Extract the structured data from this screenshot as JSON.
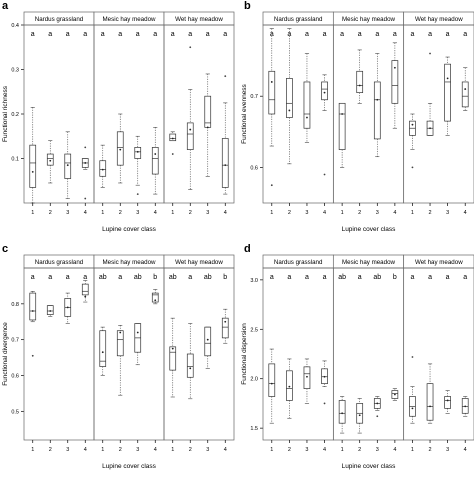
{
  "figure": {
    "categories": [
      "1",
      "2",
      "3",
      "4"
    ],
    "xlabel": "Lupine cover class",
    "strips": [
      "Nardus grassland",
      "Mesic hay meadow",
      "Wet hay meadow"
    ]
  },
  "chart_data": [
    {
      "panel_letter": "a",
      "type": "boxplot",
      "ylabel": "Functional richness",
      "ylim": [
        0.0,
        0.4
      ],
      "yticks": [
        "0.1",
        "0.2",
        "0.3",
        "0.4"
      ],
      "facets": [
        {
          "name": "Nardus grassland",
          "letters": [
            "a",
            "a",
            "a",
            "a"
          ],
          "boxes": [
            {
              "min": 0.0,
              "q1": 0.035,
              "median": 0.09,
              "q3": 0.13,
              "max": 0.215,
              "mean": 0.07,
              "outliers": []
            },
            {
              "min": 0.045,
              "q1": 0.085,
              "median": 0.1,
              "q3": 0.11,
              "max": 0.14,
              "mean": 0.095,
              "outliers": []
            },
            {
              "min": 0.01,
              "q1": 0.055,
              "median": 0.09,
              "q3": 0.11,
              "max": 0.16,
              "mean": 0.085,
              "outliers": []
            },
            {
              "min": 0.075,
              "q1": 0.08,
              "median": 0.09,
              "q3": 0.1,
              "max": 0.1,
              "mean": 0.09,
              "outliers": [
                0.125,
                0.01
              ]
            }
          ]
        },
        {
          "name": "Mesic hay meadow",
          "letters": [
            "a",
            "a",
            "a",
            "a"
          ],
          "boxes": [
            {
              "min": 0.035,
              "q1": 0.06,
              "median": 0.075,
              "q3": 0.095,
              "max": 0.13,
              "mean": 0.075,
              "outliers": []
            },
            {
              "min": 0.045,
              "q1": 0.085,
              "median": 0.125,
              "q3": 0.16,
              "max": 0.2,
              "mean": 0.12,
              "outliers": []
            },
            {
              "min": 0.04,
              "q1": 0.1,
              "median": 0.115,
              "q3": 0.125,
              "max": 0.15,
              "mean": 0.115,
              "outliers": [
                0.02
              ]
            },
            {
              "min": 0.02,
              "q1": 0.065,
              "median": 0.1,
              "q3": 0.125,
              "max": 0.17,
              "mean": 0.11,
              "outliers": []
            }
          ]
        },
        {
          "name": "Wet hay meadow",
          "letters": [
            "a",
            "a",
            "a",
            "a"
          ],
          "boxes": [
            {
              "min": 0.14,
              "q1": 0.14,
              "median": 0.145,
              "q3": 0.155,
              "max": 0.16,
              "mean": 0.145,
              "outliers": [
                0.11
              ]
            },
            {
              "min": 0.03,
              "q1": 0.12,
              "median": 0.155,
              "q3": 0.18,
              "max": 0.255,
              "mean": 0.165,
              "outliers": [
                0.35
              ]
            },
            {
              "min": 0.06,
              "q1": 0.17,
              "median": 0.18,
              "q3": 0.24,
              "max": 0.29,
              "mean": 0.17,
              "outliers": []
            },
            {
              "min": 0.02,
              "q1": 0.035,
              "median": 0.085,
              "q3": 0.145,
              "max": 0.225,
              "mean": 0.085,
              "outliers": [
                0.285
              ]
            }
          ]
        }
      ]
    },
    {
      "panel_letter": "b",
      "type": "boxplot",
      "ylabel": "Functional evenness",
      "ylim": [
        0.55,
        0.8
      ],
      "yticks": [
        "0.6",
        "0.7"
      ],
      "facets": [
        {
          "name": "Nardus grassland",
          "letters": [
            "a",
            "a",
            "a",
            "a"
          ],
          "boxes": [
            {
              "min": 0.63,
              "q1": 0.675,
              "median": 0.695,
              "q3": 0.735,
              "max": 0.795,
              "mean": 0.72,
              "outliers": [
                0.575
              ]
            },
            {
              "min": 0.605,
              "q1": 0.67,
              "median": 0.69,
              "q3": 0.725,
              "max": 0.795,
              "mean": 0.68,
              "outliers": []
            },
            {
              "min": 0.635,
              "q1": 0.655,
              "median": 0.675,
              "q3": 0.72,
              "max": 0.76,
              "mean": 0.67,
              "outliers": []
            },
            {
              "min": 0.68,
              "q1": 0.695,
              "median": 0.71,
              "q3": 0.72,
              "max": 0.73,
              "mean": 0.705,
              "outliers": [
                0.59
              ]
            }
          ]
        },
        {
          "name": "Mesic hay meadow",
          "letters": [
            "a",
            "a",
            "a",
            "a"
          ],
          "boxes": [
            {
              "min": 0.6,
              "q1": 0.625,
              "median": 0.675,
              "q3": 0.69,
              "max": 0.69,
              "mean": 0.675,
              "outliers": []
            },
            {
              "min": 0.69,
              "q1": 0.705,
              "median": 0.715,
              "q3": 0.735,
              "max": 0.765,
              "mean": 0.715,
              "outliers": []
            },
            {
              "min": 0.615,
              "q1": 0.64,
              "median": 0.695,
              "q3": 0.72,
              "max": 0.76,
              "mean": 0.695,
              "outliers": []
            },
            {
              "min": 0.655,
              "q1": 0.69,
              "median": 0.715,
              "q3": 0.75,
              "max": 0.775,
              "mean": 0.74,
              "outliers": []
            }
          ]
        },
        {
          "name": "Wet hay meadow",
          "letters": [
            "a",
            "a",
            "a",
            "a"
          ],
          "boxes": [
            {
              "min": 0.625,
              "q1": 0.645,
              "median": 0.655,
              "q3": 0.665,
              "max": 0.675,
              "mean": 0.66,
              "outliers": [
                0.6
              ]
            },
            {
              "min": 0.645,
              "q1": 0.645,
              "median": 0.655,
              "q3": 0.665,
              "max": 0.69,
              "mean": 0.655,
              "outliers": [
                0.76
              ]
            },
            {
              "min": 0.645,
              "q1": 0.665,
              "median": 0.72,
              "q3": 0.745,
              "max": 0.755,
              "mean": 0.725,
              "outliers": []
            },
            {
              "min": 0.68,
              "q1": 0.685,
              "median": 0.7,
              "q3": 0.72,
              "max": 0.74,
              "mean": 0.71,
              "outliers": []
            }
          ]
        }
      ]
    },
    {
      "panel_letter": "c",
      "type": "boxplot",
      "ylabel": "Functional divergence",
      "ylim": [
        0.42,
        0.9
      ],
      "yticks": [
        "0.5",
        "0.6",
        "0.7",
        "0.8"
      ],
      "facets": [
        {
          "name": "Nardus grassland",
          "letters": [
            "a",
            "a",
            "a",
            "a"
          ],
          "boxes": [
            {
              "min": 0.75,
              "q1": 0.755,
              "median": 0.78,
              "q3": 0.83,
              "max": 0.835,
              "mean": 0.78,
              "outliers": [
                0.655
              ]
            },
            {
              "min": 0.765,
              "q1": 0.77,
              "median": 0.78,
              "q3": 0.795,
              "max": 0.795,
              "mean": 0.78,
              "outliers": []
            },
            {
              "min": 0.745,
              "q1": 0.765,
              "median": 0.79,
              "q3": 0.815,
              "max": 0.83,
              "mean": 0.79,
              "outliers": []
            },
            {
              "min": 0.805,
              "q1": 0.825,
              "median": 0.835,
              "q3": 0.855,
              "max": 0.865,
              "mean": 0.82,
              "outliers": []
            }
          ]
        },
        {
          "name": "Mesic hay meadow",
          "letters": [
            "ab",
            "a",
            "ab",
            "b"
          ],
          "boxes": [
            {
              "min": 0.6,
              "q1": 0.625,
              "median": 0.64,
              "q3": 0.725,
              "max": 0.735,
              "mean": 0.665,
              "outliers": []
            },
            {
              "min": 0.545,
              "q1": 0.655,
              "median": 0.7,
              "q3": 0.725,
              "max": 0.74,
              "mean": 0.72,
              "outliers": []
            },
            {
              "min": 0.63,
              "q1": 0.665,
              "median": 0.705,
              "q3": 0.745,
              "max": 0.745,
              "mean": 0.72,
              "outliers": []
            },
            {
              "min": 0.8,
              "q1": 0.805,
              "median": 0.825,
              "q3": 0.83,
              "max": 0.84,
              "mean": 0.81,
              "outliers": []
            }
          ]
        },
        {
          "name": "Wet hay meadow",
          "letters": [
            "ab",
            "a",
            "ab",
            "b"
          ],
          "boxes": [
            {
              "min": 0.54,
              "q1": 0.615,
              "median": 0.665,
              "q3": 0.68,
              "max": 0.76,
              "mean": 0.675,
              "outliers": []
            },
            {
              "min": 0.535,
              "q1": 0.595,
              "median": 0.625,
              "q3": 0.66,
              "max": 0.745,
              "mean": 0.62,
              "outliers": []
            },
            {
              "min": 0.62,
              "q1": 0.655,
              "median": 0.69,
              "q3": 0.735,
              "max": 0.735,
              "mean": 0.7,
              "outliers": []
            },
            {
              "min": 0.69,
              "q1": 0.705,
              "median": 0.735,
              "q3": 0.76,
              "max": 0.785,
              "mean": 0.75,
              "outliers": []
            }
          ]
        }
      ]
    },
    {
      "panel_letter": "d",
      "type": "boxplot",
      "ylabel": "Functional dispersion",
      "ylim": [
        1.38,
        3.12
      ],
      "yticks": [
        "1.5",
        "2.0",
        "2.5",
        "3.0"
      ],
      "facets": [
        {
          "name": "Nardus grassland",
          "letters": [
            "a",
            "a",
            "a",
            "a"
          ],
          "boxes": [
            {
              "min": 1.55,
              "q1": 1.82,
              "median": 1.95,
              "q3": 2.15,
              "max": 2.3,
              "mean": 1.95,
              "outliers": []
            },
            {
              "min": 1.6,
              "q1": 1.78,
              "median": 1.9,
              "q3": 2.08,
              "max": 2.2,
              "mean": 1.92,
              "outliers": []
            },
            {
              "min": 1.75,
              "q1": 1.9,
              "median": 2.05,
              "q3": 2.12,
              "max": 2.2,
              "mean": 2.02,
              "outliers": []
            },
            {
              "min": 1.92,
              "q1": 1.95,
              "median": 2.02,
              "q3": 2.1,
              "max": 2.18,
              "mean": 2.02,
              "outliers": [
                1.75
              ]
            }
          ]
        },
        {
          "name": "Mesic hay meadow",
          "letters": [
            "ab",
            "a",
            "ab",
            "b"
          ],
          "boxes": [
            {
              "min": 1.45,
              "q1": 1.55,
              "median": 1.65,
              "q3": 1.78,
              "max": 1.82,
              "mean": 1.65,
              "outliers": []
            },
            {
              "min": 1.45,
              "q1": 1.55,
              "median": 1.65,
              "q3": 1.75,
              "max": 1.8,
              "mean": 1.63,
              "outliers": []
            },
            {
              "min": 1.68,
              "q1": 1.7,
              "median": 1.75,
              "q3": 1.8,
              "max": 1.82,
              "mean": 1.75,
              "outliers": [
                1.62
              ]
            },
            {
              "min": 1.78,
              "q1": 1.8,
              "median": 1.85,
              "q3": 1.88,
              "max": 1.9,
              "mean": 1.84,
              "outliers": []
            }
          ]
        },
        {
          "name": "Wet hay meadow",
          "letters": [
            "a",
            "a",
            "a",
            "a"
          ],
          "boxes": [
            {
              "min": 1.55,
              "q1": 1.62,
              "median": 1.72,
              "q3": 1.82,
              "max": 1.92,
              "mean": 1.7,
              "outliers": [
                2.22
              ]
            },
            {
              "min": 1.55,
              "q1": 1.58,
              "median": 1.72,
              "q3": 1.95,
              "max": 2.15,
              "mean": 1.72,
              "outliers": []
            },
            {
              "min": 1.65,
              "q1": 1.7,
              "median": 1.78,
              "q3": 1.82,
              "max": 1.88,
              "mean": 1.78,
              "outliers": []
            },
            {
              "min": 1.62,
              "q1": 1.65,
              "median": 1.72,
              "q3": 1.8,
              "max": 1.82,
              "mean": 1.72,
              "outliers": []
            }
          ]
        }
      ]
    }
  ]
}
